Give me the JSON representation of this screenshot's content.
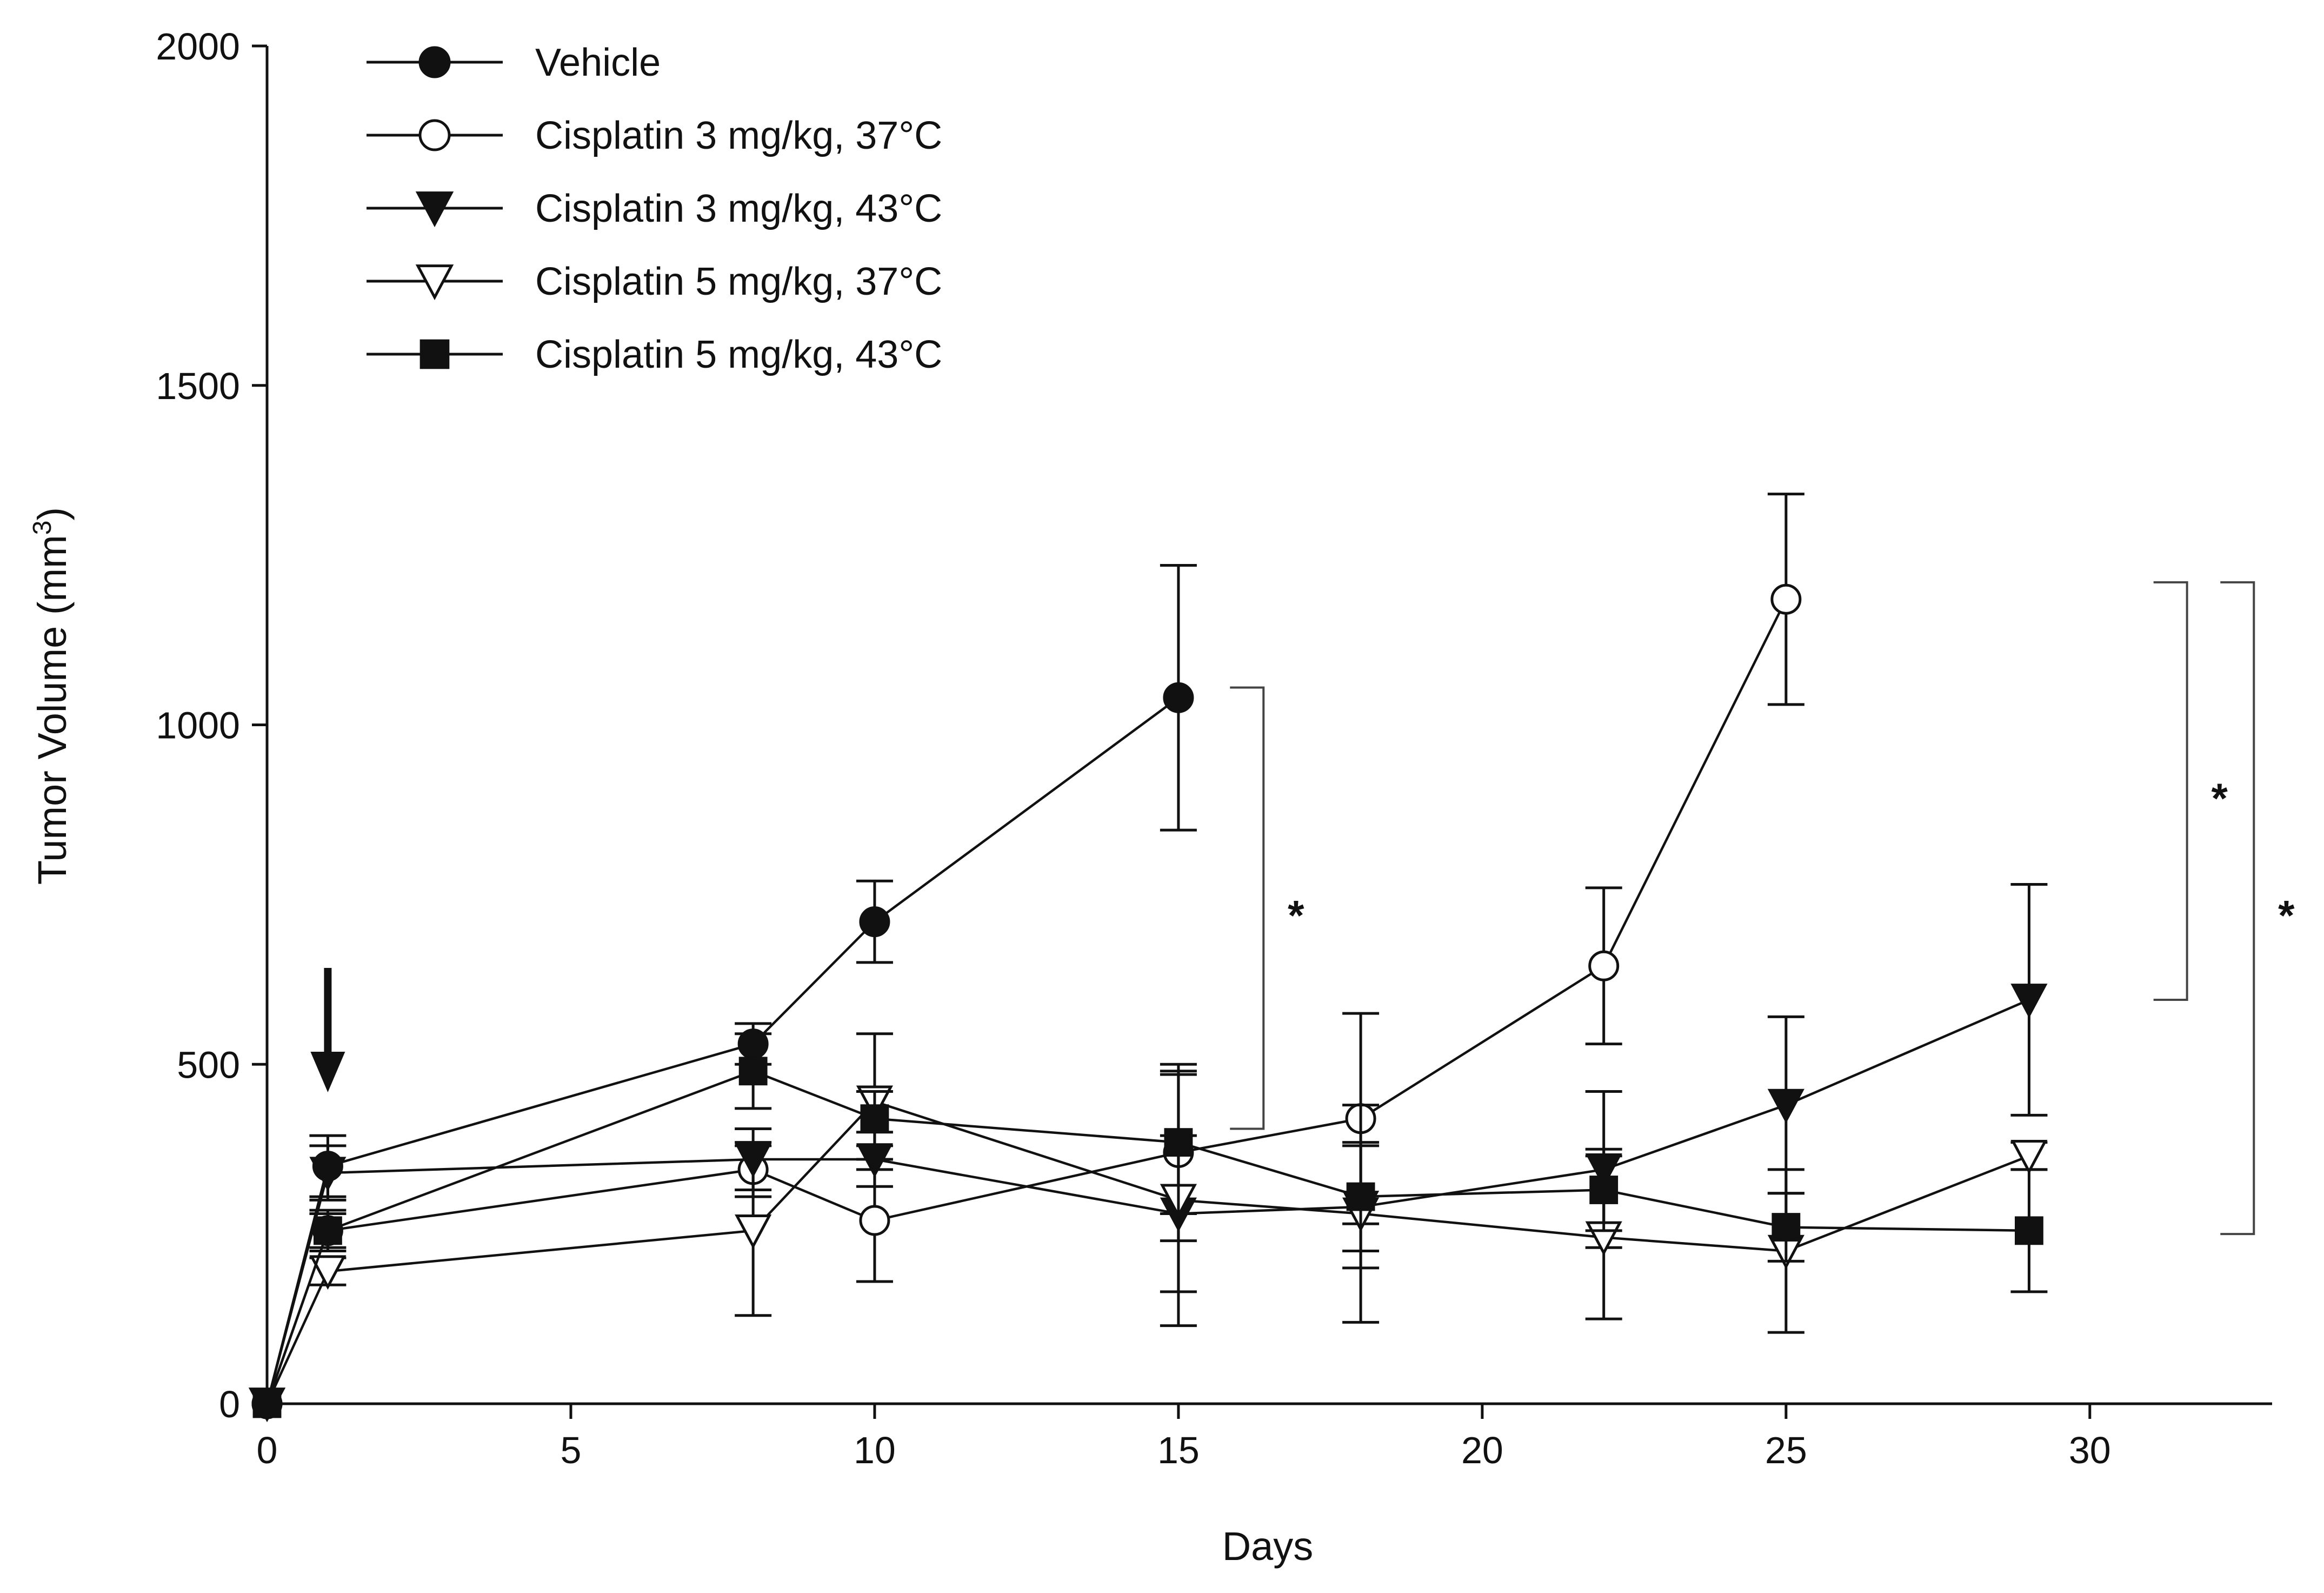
{
  "chart_data": {
    "type": "line",
    "title": "",
    "xlabel": "Days",
    "ylabel": "Tumor Volume (mm",
    "ylabel_sup": "3",
    "ylabel_close": ")",
    "xlim": [
      0,
      33
    ],
    "ylim": [
      0,
      2000
    ],
    "xticks": [
      0,
      5,
      10,
      15,
      20,
      25,
      30
    ],
    "yticks": [
      0,
      500,
      1000,
      1500,
      2000
    ],
    "grid": false,
    "legend_position": "top-left",
    "treatment_arrow_day": 1,
    "series": [
      {
        "name": "Vehicle",
        "marker": "circle",
        "filled": true,
        "x": [
          0,
          1,
          8,
          10,
          15
        ],
        "y": [
          0,
          350,
          530,
          710,
          1040
        ],
        "err": [
          0,
          45,
          30,
          60,
          195
        ]
      },
      {
        "name": "Cisplatin 3 mg/kg, 37°C",
        "marker": "circle",
        "filled": false,
        "x": [
          0,
          1,
          8,
          10,
          15,
          18,
          22,
          25
        ],
        "y": [
          0,
          255,
          345,
          270,
          370,
          420,
          645,
          1185
        ],
        "err": [
          0,
          30,
          40,
          90,
          130,
          155,
          115,
          155
        ]
      },
      {
        "name": "Cisplatin 3 mg/kg, 43°C",
        "marker": "triangle-down",
        "filled": true,
        "x": [
          0,
          1,
          8,
          10,
          15,
          18,
          22,
          25,
          29
        ],
        "y": [
          0,
          340,
          360,
          360,
          280,
          290,
          345,
          440,
          595
        ],
        "err": [
          0,
          40,
          45,
          40,
          115,
          90,
          115,
          130,
          170
        ]
      },
      {
        "name": "Cisplatin 5 mg/kg, 37°C",
        "marker": "triangle-down",
        "filled": false,
        "x": [
          0,
          1,
          8,
          10,
          15,
          18,
          22,
          25,
          29
        ],
        "y": [
          0,
          195,
          255,
          445,
          300,
          280,
          245,
          225,
          365
        ],
        "err": [
          0,
          20,
          125,
          100,
          185,
          160,
          120,
          120,
          20
        ]
      },
      {
        "name": "Cisplatin 5 mg/kg, 43°C",
        "marker": "square",
        "filled": true,
        "x": [
          0,
          1,
          8,
          10,
          15,
          18,
          22,
          25,
          29
        ],
        "y": [
          0,
          255,
          490,
          420,
          385,
          305,
          315,
          260,
          255
        ],
        "err": [
          0,
          25,
          55,
          40,
          105,
          80,
          60,
          50,
          90
        ]
      }
    ],
    "significance": [
      {
        "label": "*",
        "x_day": 16.4,
        "y_top": 1055,
        "y_bottom": 405
      },
      {
        "label": "*",
        "x_day": 31.6,
        "y_top": 1210,
        "y_bottom": 595
      },
      {
        "label": "*",
        "x_day": 32.7,
        "y_top": 1210,
        "y_bottom": 250
      }
    ]
  }
}
